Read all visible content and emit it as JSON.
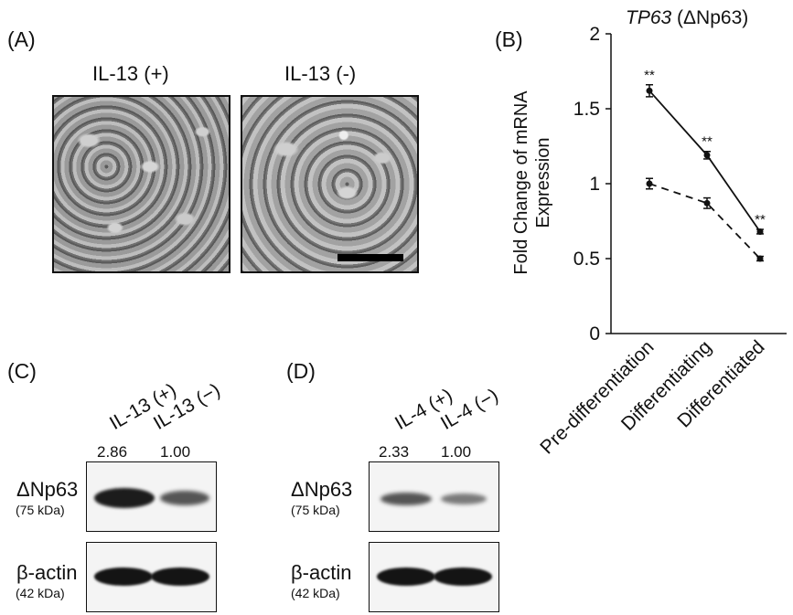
{
  "panels": {
    "a": {
      "label": "(A)",
      "left_condition": "IL-13 (+)",
      "right_condition": "IL-13 (-)"
    },
    "b": {
      "label": "(B)"
    },
    "c": {
      "label": "(C)",
      "lanes": [
        "IL-13 (+)",
        "IL-13 (−)"
      ],
      "quant": [
        "2.86",
        "1.00"
      ],
      "quant_values": [
        2.86,
        1.0
      ],
      "protein_1": "ΔNp63",
      "protein_1_kda": "(75 kDa)",
      "protein_2": "β-actin",
      "protein_2_kda": "(42 kDa)"
    },
    "d": {
      "label": "(D)",
      "lanes": [
        "IL-4 (+)",
        "IL-4 (−)"
      ],
      "quant": [
        "2.33",
        "1.00"
      ],
      "quant_values": [
        2.33,
        1.0
      ],
      "protein_1": "ΔNp63",
      "protein_1_kda": "(75 kDa)",
      "protein_2": "β-actin",
      "protein_2_kda": "(42 kDa)"
    }
  },
  "chart_data": {
    "type": "line",
    "title_italic": "TP63",
    "title_rest": " (ΔNp63)",
    "ylabel_line1": "Fold Change of mRNA",
    "ylabel_line2": "Expression",
    "xlabel": "",
    "categories": [
      "Pre-differentiation",
      "Differentiating",
      "Differentiated"
    ],
    "ylim": [
      0,
      2
    ],
    "yticks": [
      0,
      0.5,
      1,
      1.5,
      2
    ],
    "ytick_labels": [
      "0",
      "0.5",
      "1",
      "1.5",
      "2"
    ],
    "series": [
      {
        "style": "solid",
        "values": [
          1.62,
          1.19,
          0.68
        ],
        "errors": [
          0.04,
          0.025,
          0.015
        ]
      },
      {
        "style": "dashed",
        "values": [
          1.0,
          0.87,
          0.5
        ],
        "errors": [
          0.035,
          0.035,
          0.015
        ]
      }
    ],
    "significance": [
      "**",
      "**",
      "**"
    ],
    "grid": false,
    "legend": "none"
  }
}
